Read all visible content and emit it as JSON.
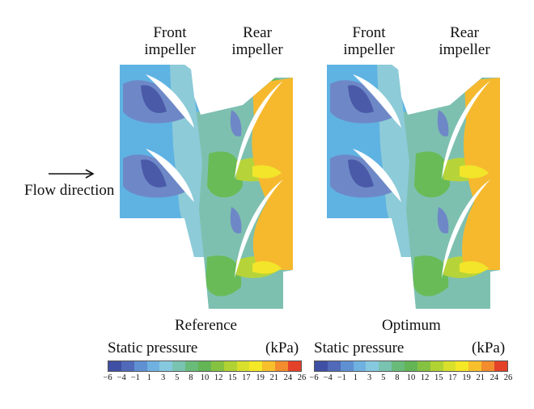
{
  "panels": [
    {
      "id": "reference",
      "front_label_1": "Front",
      "front_label_2": "impeller",
      "rear_label_1": "Rear",
      "rear_label_2": "impeller",
      "caption": "Reference"
    },
    {
      "id": "optimum",
      "front_label_1": "Front",
      "front_label_2": "impeller",
      "rear_label_1": "Rear",
      "rear_label_2": "impeller",
      "caption": "Optimum"
    }
  ],
  "flow_direction": "Flow direction",
  "colorbar": {
    "title": "Static pressure",
    "unit": "(kPa)",
    "ticks": [
      "−6",
      "−4",
      "−1",
      "1",
      "3",
      "5",
      "8",
      "10",
      "12",
      "15",
      "17",
      "19",
      "21",
      "24",
      "26"
    ],
    "colors": [
      "#3f4fa3",
      "#5069b9",
      "#5f90d2",
      "#6fb1e0",
      "#86c9df",
      "#79c3b1",
      "#69bb7a",
      "#63b556",
      "#86c241",
      "#b0d233",
      "#d8e02b",
      "#f5e827",
      "#f7bf2b",
      "#f28c2d",
      "#e4412a"
    ]
  },
  "palette": {
    "deep_blue": "#4a5aa8",
    "mid_blue": "#6e88c7",
    "sky_blue": "#5fb3e3",
    "light_cyan": "#8dcbd8",
    "teal": "#7ec0b0",
    "green": "#69bb58",
    "yellow_green": "#b6d43a",
    "yellow": "#f2e52a",
    "orange": "#f6b92e"
  }
}
